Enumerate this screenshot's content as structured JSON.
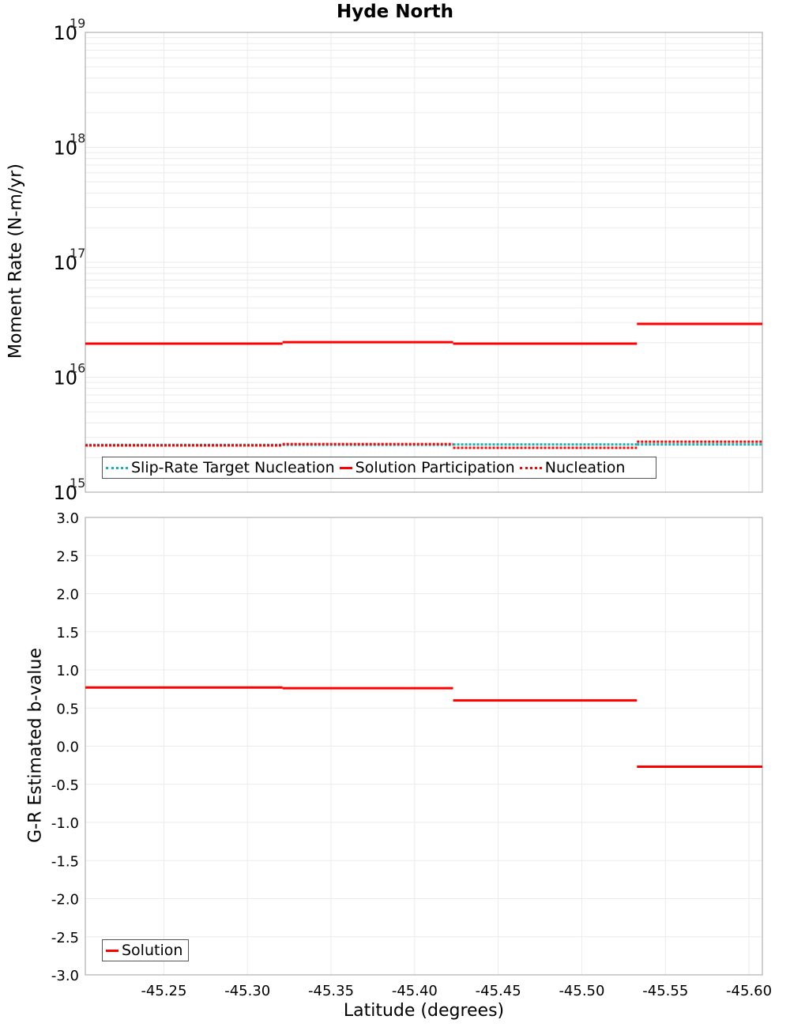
{
  "title": "Hyde North",
  "colors": {
    "solution": "#ff0000",
    "slip_rate_target": "#17b2b6",
    "nucleation": "#ff0000",
    "grid": "#ebebeb",
    "frame": "#b0b0b0"
  },
  "top_chart": {
    "ylabel": "Moment Rate (N-m/yr)",
    "yticks": [
      {
        "base": "10",
        "exp": "19"
      },
      {
        "base": "10",
        "exp": "18"
      },
      {
        "base": "10",
        "exp": "17"
      },
      {
        "base": "10",
        "exp": "16"
      },
      {
        "base": "10",
        "exp": "15"
      }
    ],
    "legend": {
      "slip_rate": "Slip-Rate Target Nucleation",
      "solution": "Solution Participation",
      "nucleation": "Nucleation"
    }
  },
  "bottom_chart": {
    "ylabel": "G-R Estimated b-value",
    "yticks": [
      "3.0",
      "2.5",
      "2.0",
      "1.5",
      "1.0",
      "0.5",
      "0.0",
      "-0.5",
      "-1.0",
      "-1.5",
      "-2.0",
      "-2.5",
      "-3.0"
    ],
    "legend": {
      "solution": "Solution"
    }
  },
  "xaxis": {
    "label": "Latitude (degrees)",
    "ticks": [
      "-45.25",
      "-45.30",
      "-45.35",
      "-45.40",
      "-45.45",
      "-45.50",
      "-45.55",
      "-45.60"
    ]
  },
  "chart_data": [
    {
      "type": "line",
      "title": "Hyde North",
      "xlabel": "Latitude (degrees)",
      "ylabel": "Moment Rate (N-m/yr)",
      "yscale": "log",
      "ylim": [
        1000000000000000.0,
        1e+19
      ],
      "xlim": [
        -45.203,
        -45.608
      ],
      "x_reversed": true,
      "grid": true,
      "legend_position": "lower left",
      "segment_bounds": [
        -45.203,
        -45.321,
        -45.423,
        -45.533,
        -45.608
      ],
      "series": [
        {
          "name": "Slip-Rate Target Nucleation",
          "style": "dotted",
          "color": "#17b2b6",
          "values": [
            2580000000000000.0,
            2580000000000000.0,
            2600000000000000.0,
            2600000000000000.0
          ]
        },
        {
          "name": "Solution Participation",
          "style": "solid",
          "color": "#ff0000",
          "values": [
            1.96e+16,
            2.02e+16,
            1.96e+16,
            2.91e+16
          ]
        },
        {
          "name": "Nucleation",
          "style": "dotted",
          "color": "#ff0000",
          "values": [
            2550000000000000.0,
            2620000000000000.0,
            2430000000000000.0,
            2750000000000000.0
          ]
        }
      ]
    },
    {
      "type": "line",
      "xlabel": "Latitude (degrees)",
      "ylabel": "G-R Estimated b-value",
      "ylim": [
        -3.0,
        3.0
      ],
      "xlim": [
        -45.203,
        -45.608
      ],
      "x_reversed": true,
      "grid": true,
      "legend_position": "lower left",
      "segment_bounds": [
        -45.203,
        -45.321,
        -45.423,
        -45.533,
        -45.608
      ],
      "series": [
        {
          "name": "Solution",
          "style": "solid",
          "color": "#ff0000",
          "values": [
            0.77,
            0.76,
            0.6,
            -0.27
          ]
        }
      ]
    }
  ]
}
